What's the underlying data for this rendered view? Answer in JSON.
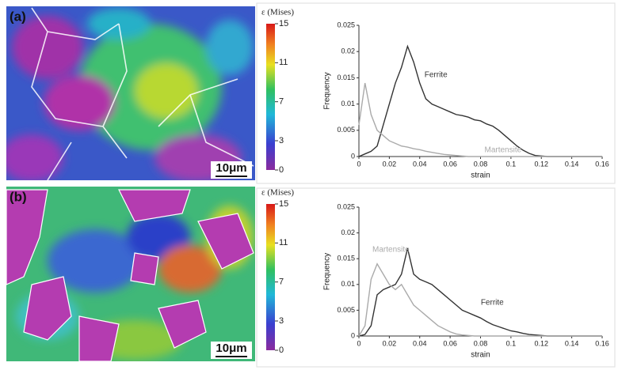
{
  "panels": [
    {
      "label": "(a)",
      "scale_bar": "10μm",
      "colorbar": {
        "title": "ε (Mises)",
        "lim": [
          0,
          15
        ],
        "ticks": [
          0,
          3,
          7,
          11,
          15
        ]
      }
    },
    {
      "label": "(b)",
      "scale_bar": "10μm",
      "colorbar": {
        "title": "ε (Mises)",
        "lim": [
          0,
          15
        ],
        "ticks": [
          0,
          3,
          7,
          11,
          15
        ]
      }
    }
  ],
  "chart_data": [
    {
      "type": "line",
      "x_label": "strain",
      "y_label": "Frequency",
      "x": [
        0,
        0.004,
        0.008,
        0.012,
        0.016,
        0.02,
        0.024,
        0.028,
        0.032,
        0.036,
        0.04,
        0.044,
        0.048,
        0.052,
        0.056,
        0.06,
        0.064,
        0.068,
        0.072,
        0.076,
        0.08,
        0.084,
        0.088,
        0.092,
        0.096,
        0.1,
        0.104,
        0.108,
        0.112,
        0.116,
        0.12,
        0.124,
        0.128,
        0.132,
        0.136,
        0.14,
        0.144,
        0.148,
        0.152,
        0.156,
        0.16
      ],
      "series": [
        {
          "name": "Ferrite",
          "color": "#333333",
          "values": [
            0,
            0.0005,
            0.001,
            0.002,
            0.006,
            0.01,
            0.014,
            0.017,
            0.021,
            0.018,
            0.014,
            0.011,
            0.01,
            0.0095,
            0.009,
            0.0085,
            0.008,
            0.0078,
            0.0075,
            0.007,
            0.0068,
            0.0062,
            0.0058,
            0.005,
            0.004,
            0.003,
            0.002,
            0.0012,
            0.0006,
            0.0002,
            0.0001,
            0,
            0,
            0,
            0,
            0,
            0,
            0,
            0,
            0,
            0
          ]
        },
        {
          "name": "Martensite",
          "color": "#aaaaaa",
          "values": [
            0.006,
            0.014,
            0.008,
            0.005,
            0.004,
            0.003,
            0.0025,
            0.002,
            0.0018,
            0.0015,
            0.0013,
            0.001,
            0.0008,
            0.0006,
            0.0004,
            0.0003,
            0.0002,
            0.0001,
            0,
            0,
            0,
            0,
            0,
            0,
            0,
            0,
            0,
            0,
            0,
            0,
            0,
            0,
            0,
            0,
            0,
            0,
            0,
            0,
            0,
            0,
            0
          ]
        }
      ],
      "xlim": [
        0,
        0.16
      ],
      "xticks": [
        0,
        0.02,
        0.04,
        0.06,
        0.08,
        0.1,
        0.12,
        0.14,
        0.16
      ],
      "ylim": [
        0,
        0.025
      ],
      "yticks": [
        0,
        0.005,
        0.01,
        0.015,
        0.02,
        0.025
      ]
    },
    {
      "type": "line",
      "x_label": "strain",
      "y_label": "Frequency",
      "x": [
        0,
        0.004,
        0.008,
        0.012,
        0.016,
        0.02,
        0.024,
        0.028,
        0.032,
        0.036,
        0.04,
        0.044,
        0.048,
        0.052,
        0.056,
        0.06,
        0.064,
        0.068,
        0.072,
        0.076,
        0.08,
        0.084,
        0.088,
        0.092,
        0.096,
        0.1,
        0.104,
        0.108,
        0.112,
        0.116,
        0.12,
        0.124,
        0.128,
        0.132,
        0.136,
        0.14,
        0.144,
        0.148,
        0.152,
        0.156,
        0.16
      ],
      "series": [
        {
          "name": "Ferrite",
          "color": "#333333",
          "values": [
            0,
            0.0003,
            0.002,
            0.008,
            0.009,
            0.0095,
            0.01,
            0.012,
            0.017,
            0.012,
            0.011,
            0.0105,
            0.01,
            0.009,
            0.008,
            0.007,
            0.006,
            0.005,
            0.0045,
            0.004,
            0.0035,
            0.0028,
            0.0022,
            0.0018,
            0.0014,
            0.001,
            0.0008,
            0.0005,
            0.0003,
            0.0002,
            0.0001,
            0,
            0,
            0,
            0,
            0,
            0,
            0,
            0,
            0,
            0
          ]
        },
        {
          "name": "Martensite",
          "color": "#aaaaaa",
          "values": [
            0,
            0.002,
            0.011,
            0.014,
            0.012,
            0.01,
            0.009,
            0.01,
            0.008,
            0.006,
            0.005,
            0.004,
            0.003,
            0.002,
            0.0014,
            0.0008,
            0.0004,
            0.0002,
            0.0001,
            0,
            0,
            0,
            0,
            0,
            0,
            0,
            0,
            0,
            0,
            0,
            0,
            0,
            0,
            0,
            0,
            0,
            0,
            0,
            0,
            0,
            0
          ]
        }
      ],
      "xlim": [
        0,
        0.16
      ],
      "xticks": [
        0,
        0.02,
        0.04,
        0.06,
        0.08,
        0.1,
        0.12,
        0.14,
        0.16
      ],
      "ylim": [
        0,
        0.025
      ],
      "yticks": [
        0,
        0.005,
        0.01,
        0.015,
        0.02,
        0.025
      ]
    }
  ]
}
